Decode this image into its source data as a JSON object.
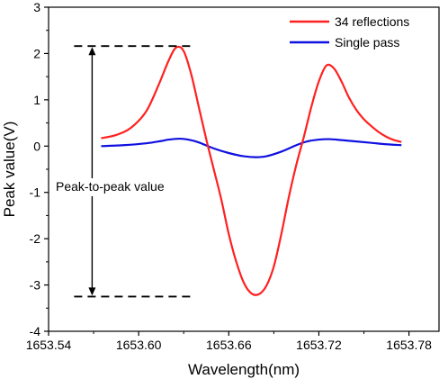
{
  "chart_data": {
    "type": "line",
    "title": "",
    "xlabel": "Wavelength(nm)",
    "ylabel": "Peak value(V)",
    "xlim": [
      1653.54,
      1653.8
    ],
    "ylim": [
      -4,
      3
    ],
    "x_ticks": [
      1653.54,
      1653.6,
      1653.66,
      1653.72,
      1653.78
    ],
    "x_tick_labels": [
      "1653.54",
      "1653.60",
      "1653.66",
      "1653.72",
      "1653.78"
    ],
    "y_ticks": [
      -4,
      -3,
      -2,
      -1,
      0,
      1,
      2,
      3
    ],
    "y_tick_labels": [
      "-4",
      "-3",
      "-2",
      "-1",
      "0",
      "1",
      "2",
      "3"
    ],
    "grid": false,
    "legend_position": "top-right",
    "series": [
      {
        "name": "34 reflections",
        "color": "#ff2020",
        "x": [
          1653.575,
          1653.585,
          1653.595,
          1653.605,
          1653.613,
          1653.62,
          1653.625,
          1653.63,
          1653.635,
          1653.64,
          1653.645,
          1653.65,
          1653.655,
          1653.66,
          1653.665,
          1653.67,
          1653.675,
          1653.68,
          1653.685,
          1653.69,
          1653.695,
          1653.7,
          1653.705,
          1653.71,
          1653.715,
          1653.72,
          1653.725,
          1653.73,
          1653.735,
          1653.74,
          1653.745,
          1653.75,
          1653.755,
          1653.76,
          1653.765,
          1653.77,
          1653.775
        ],
        "y": [
          0.17,
          0.24,
          0.4,
          0.75,
          1.3,
          1.85,
          2.13,
          2.05,
          1.55,
          0.85,
          0.15,
          -0.5,
          -1.15,
          -1.9,
          -2.5,
          -2.95,
          -3.18,
          -3.2,
          -3.02,
          -2.6,
          -1.9,
          -1.1,
          -0.4,
          0.2,
          0.85,
          1.4,
          1.74,
          1.68,
          1.4,
          1.05,
          0.78,
          0.58,
          0.43,
          0.3,
          0.2,
          0.13,
          0.09
        ]
      },
      {
        "name": "Single pass",
        "color": "#1010e0",
        "x": [
          1653.575,
          1653.59,
          1653.605,
          1653.615,
          1653.62,
          1653.627,
          1653.633,
          1653.64,
          1653.65,
          1653.66,
          1653.67,
          1653.678,
          1653.685,
          1653.695,
          1653.705,
          1653.712,
          1653.72,
          1653.727,
          1653.735,
          1653.745,
          1653.755,
          1653.765,
          1653.775
        ],
        "y": [
          0.0,
          0.02,
          0.06,
          0.11,
          0.14,
          0.16,
          0.14,
          0.08,
          -0.05,
          -0.15,
          -0.22,
          -0.24,
          -0.22,
          -0.12,
          0.02,
          0.1,
          0.14,
          0.15,
          0.13,
          0.1,
          0.07,
          0.04,
          0.02
        ]
      }
    ],
    "annotations": {
      "peak_to_peak_label": "Peak-to-peak value",
      "upper_level": 2.16,
      "lower_level": -3.25,
      "dash_x_start": 1653.557,
      "dash_x_end": 1653.635,
      "arrow_x": 1653.569
    }
  }
}
